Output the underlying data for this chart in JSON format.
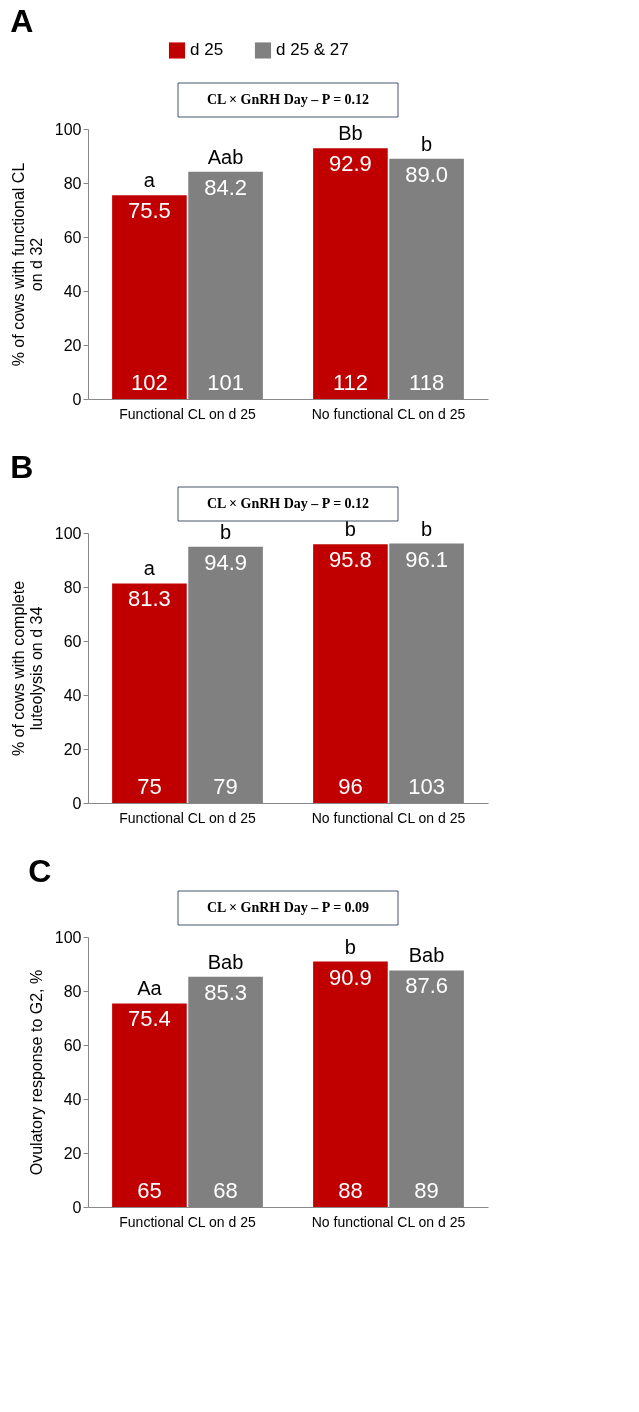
{
  "chart_data": [
    {
      "type": "bar",
      "title": "A",
      "ylabel": "% of cows with functional CL on d 32",
      "categories": [
        "Functional CL on d 25",
        "No functional CL on d 25"
      ],
      "series": [
        {
          "name": "d 25",
          "color": "#c00000",
          "values": [
            75.5,
            92.9
          ],
          "value_labels": [
            "75.5",
            "92.9"
          ]
        },
        {
          "name": "d 25 & 27",
          "color": "#808080",
          "values": [
            84.2,
            89.0
          ],
          "value_labels": [
            "84.2",
            "89.0"
          ]
        }
      ],
      "ylim": [
        0,
        100
      ],
      "yticks": [
        0,
        20,
        40,
        60,
        80,
        100
      ],
      "grid": false,
      "legend": "top",
      "annotations": [
        "CL × GnRH Day – P = 0.12",
        {
          "text": "a",
          "x": "Functional CL on d 25",
          "y": 75.5
        },
        {
          "text": "Aab",
          "x": "Functional CL on d 25",
          "y": 84.2
        },
        {
          "text": "Bb",
          "x": "No functional CL on d 25",
          "y": 92.9
        },
        {
          "text": "b",
          "x": "No functional CL on d 25",
          "y": 89.0
        },
        {
          "text": "102",
          "x": "Functional CL on d 25",
          "y": 0
        },
        {
          "text": "101",
          "x": "Functional CL on d 25",
          "y": 0
        },
        {
          "text": "112",
          "x": "No functional CL on d 25",
          "y": 0
        },
        {
          "text": "118",
          "x": "No functional CL on d 25",
          "y": 0
        }
      ]
    },
    {
      "type": "bar",
      "title": "B",
      "ylabel": "% of cows with complete luteolysis on d 34",
      "categories": [
        "Functional CL on d 25",
        "No functional CL on d 25"
      ],
      "series": [
        {
          "color": "#c00000",
          "values": [
            81.3,
            95.8
          ],
          "value_labels": [
            "81.3",
            "95.8"
          ]
        },
        {
          "color": "#808080",
          "values": [
            94.9,
            96.1
          ],
          "value_labels": [
            "94.9",
            "96.1"
          ]
        }
      ],
      "ylim": [
        0,
        100
      ],
      "yticks": [
        0,
        20,
        40,
        60,
        80,
        100
      ],
      "grid": false,
      "annotations": [
        "CL × GnRH Day – P = 0.12",
        {
          "text": "a",
          "x": "Functional CL on d 25",
          "y": 81.3
        },
        {
          "text": "b",
          "x": "Functional CL on d 25",
          "y": 94.9
        },
        {
          "text": "b",
          "x": "No functional CL on d 25",
          "y": 95.8
        },
        {
          "text": "b",
          "x": "No functional CL on d 25",
          "y": 96.1
        },
        {
          "text": "75",
          "x": "Functional CL on d 25",
          "y": 0
        },
        {
          "text": "79",
          "x": "Functional CL on d 25",
          "y": 0
        },
        {
          "text": "96",
          "x": "No functional CL on d 25",
          "y": 0
        },
        {
          "text": "103",
          "x": "No functional CL on d 25",
          "y": 0
        }
      ]
    },
    {
      "type": "bar",
      "title": "C",
      "ylabel": "Ovulatory response to G2, %",
      "categories": [
        "Functional CL on d 25",
        "No functional CL on d 25"
      ],
      "series": [
        {
          "color": "#c00000",
          "values": [
            75.4,
            90.9
          ],
          "value_labels": [
            "75.4",
            "90.9"
          ]
        },
        {
          "color": "#808080",
          "values": [
            85.3,
            87.6
          ],
          "value_labels": [
            "85.3",
            "87.6"
          ]
        }
      ],
      "ylim": [
        0,
        100
      ],
      "yticks": [
        0,
        20,
        40,
        60,
        80,
        100
      ],
      "grid": false,
      "annotations": [
        "CL × GnRH Day – P = 0.09",
        {
          "text": "Aa",
          "x": "Functional CL on d 25",
          "y": 75.4
        },
        {
          "text": "Bab",
          "x": "Functional CL on d 25",
          "y": 85.3
        },
        {
          "text": "b",
          "x": "No functional CL on d 25",
          "y": 90.9
        },
        {
          "text": "Bab",
          "x": "No functional CL on d 25",
          "y": 87.6
        },
        {
          "text": "65",
          "x": "Functional CL on d 25",
          "y": 0
        },
        {
          "text": "68",
          "x": "Functional CL on d 25",
          "y": 0
        },
        {
          "text": "88",
          "x": "No functional CL on d 25",
          "y": 0
        },
        {
          "text": "89",
          "x": "No functional CL on d 25",
          "y": 0
        }
      ]
    }
  ]
}
